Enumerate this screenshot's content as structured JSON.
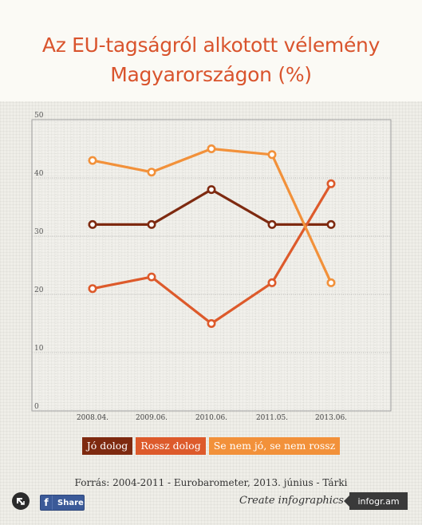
{
  "title": {
    "line1": "Az EU-tagságról alkotott vélemény",
    "line2": "Magyarországon (%)"
  },
  "chart_data": {
    "type": "line",
    "title": "Az EU-tagságról alkotott vélemény Magyarországon (%)",
    "categories": [
      "2008.04.",
      "2009.06.",
      "2010.06.",
      "2011.05.",
      "2013.06."
    ],
    "ylim": [
      0,
      50
    ],
    "yticks": [
      0,
      10,
      20,
      30,
      40,
      50
    ],
    "grid": true,
    "legend_position": "bottom",
    "series": [
      {
        "name": "Jó dolog",
        "color": "#7e2a10",
        "values": [
          32,
          32,
          38,
          32,
          32
        ]
      },
      {
        "name": "Rossz dolog",
        "color": "#dd5a2b",
        "values": [
          21,
          23,
          15,
          22,
          39
        ]
      },
      {
        "name": "Se nem jó, se nem rossz",
        "color": "#f2913a",
        "values": [
          43,
          41,
          45,
          44,
          22
        ]
      }
    ]
  },
  "footer": {
    "source": "Forrás: 2004-2011 - Eurobarometer, 2013. június - Tárki",
    "share_label": "Share",
    "share_icon": "facebook-icon",
    "reload_icon": "reload-icon",
    "create": "Create infographics",
    "brand": "infogr.am"
  }
}
